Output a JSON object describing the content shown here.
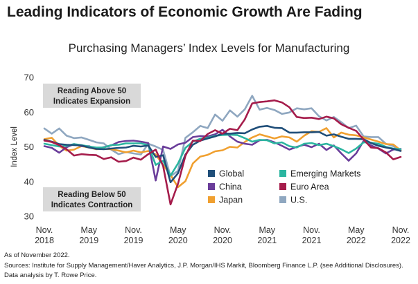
{
  "title": "Leading Indicators of Economic Growth Are Fading",
  "footnote": "As of November 2022.",
  "sources": "Sources: Institute for Supply Management/Haver Analytics, J.P. Morgan/IHS Markit, Bloomberg Finance L.P. (see Additional Disclosures). Data analysis by T. Rowe Price.",
  "chart_data": {
    "type": "line",
    "title": "Purchasing Managers’ Index Levels for Manufacturing",
    "xlabel": "",
    "ylabel": "Index Level",
    "ylim": [
      30,
      70
    ],
    "yticks": [
      30,
      40,
      50,
      60,
      70
    ],
    "grid": false,
    "legend_placement": "bottom-right",
    "x_tick_labels": [
      {
        "month": "Nov.",
        "year": "2018"
      },
      {
        "month": "May",
        "year": "2019"
      },
      {
        "month": "Nov.",
        "year": "2019"
      },
      {
        "month": "May",
        "year": "2020"
      },
      {
        "month": "Nov.",
        "year": "2020"
      },
      {
        "month": "May",
        "year": "2021"
      },
      {
        "month": "Nov.",
        "year": "2021"
      },
      {
        "month": "May",
        "year": "2022"
      },
      {
        "month": "Nov.",
        "year": "2022"
      }
    ],
    "annotations": {
      "upper_line1": "Reading Above 50",
      "upper_line2": "Indicates Expansion",
      "lower_line1": "Reading Below 50",
      "lower_line2": "Indicates Contraction"
    },
    "x": [
      "2018-11",
      "2018-12",
      "2019-01",
      "2019-02",
      "2019-03",
      "2019-04",
      "2019-05",
      "2019-06",
      "2019-07",
      "2019-08",
      "2019-09",
      "2019-10",
      "2019-11",
      "2019-12",
      "2020-01",
      "2020-02",
      "2020-03",
      "2020-04",
      "2020-05",
      "2020-06",
      "2020-07",
      "2020-08",
      "2020-09",
      "2020-10",
      "2020-11",
      "2020-12",
      "2021-01",
      "2021-02",
      "2021-03",
      "2021-04",
      "2021-05",
      "2021-06",
      "2021-07",
      "2021-08",
      "2021-09",
      "2021-10",
      "2021-11",
      "2021-12",
      "2022-01",
      "2022-02",
      "2022-03",
      "2022-04",
      "2022-05",
      "2022-06",
      "2022-07",
      "2022-08",
      "2022-09",
      "2022-10",
      "2022-11"
    ],
    "series": [
      {
        "name": "Global",
        "color": "#1f4e79",
        "values": [
          52.0,
          51.5,
          50.8,
          50.6,
          50.5,
          50.4,
          49.8,
          49.4,
          49.3,
          49.5,
          49.7,
          49.8,
          50.3,
          50.1,
          50.4,
          47.1,
          47.6,
          39.8,
          42.4,
          47.8,
          50.6,
          51.8,
          52.4,
          53.0,
          53.8,
          53.8,
          54.0,
          53.9,
          55.0,
          55.8,
          56.0,
          55.5,
          55.4,
          54.1,
          54.1,
          54.2,
          54.2,
          54.3,
          53.2,
          53.6,
          52.9,
          52.3,
          52.3,
          52.2,
          51.1,
          50.3,
          49.8,
          49.4,
          48.8
        ]
      },
      {
        "name": "Emerging Markets",
        "color": "#2bb5a0",
        "values": [
          50.9,
          50.5,
          50.1,
          50.3,
          50.8,
          50.5,
          50.1,
          49.8,
          49.8,
          50.5,
          50.6,
          51.0,
          51.0,
          51.0,
          50.5,
          44.8,
          46.0,
          41.7,
          45.2,
          49.7,
          51.5,
          52.3,
          52.6,
          53.2,
          53.4,
          53.5,
          53.4,
          52.5,
          51.5,
          52.0,
          51.9,
          51.0,
          51.3,
          50.2,
          49.8,
          50.9,
          51.1,
          50.5,
          50.9,
          50.2,
          49.3,
          48.2,
          49.5,
          51.3,
          51.2,
          50.9,
          50.0,
          49.5,
          49.3
        ]
      },
      {
        "name": "China",
        "color": "#6a3d9a",
        "values": [
          50.2,
          49.7,
          48.3,
          49.9,
          50.8,
          50.2,
          50.2,
          49.4,
          49.9,
          50.4,
          51.4,
          51.7,
          51.8,
          51.5,
          51.1,
          40.3,
          50.1,
          49.4,
          50.7,
          51.2,
          52.8,
          53.1,
          53.0,
          53.6,
          54.9,
          53.0,
          51.5,
          50.9,
          50.6,
          51.9,
          52.0,
          51.3,
          50.3,
          49.2,
          50.0,
          50.6,
          49.9,
          50.9,
          49.1,
          50.4,
          48.1,
          46.0,
          48.1,
          51.7,
          50.4,
          49.5,
          48.1,
          49.2,
          49.4
        ]
      },
      {
        "name": "Euro Area",
        "color": "#a51c4b",
        "values": [
          51.8,
          51.4,
          50.5,
          49.3,
          47.5,
          47.9,
          47.7,
          47.6,
          46.5,
          47.0,
          45.7,
          45.9,
          46.9,
          46.3,
          47.9,
          49.2,
          44.5,
          33.4,
          39.4,
          47.4,
          51.8,
          51.7,
          53.7,
          54.8,
          53.8,
          55.2,
          54.8,
          57.9,
          62.5,
          62.9,
          63.1,
          63.4,
          62.8,
          61.4,
          58.6,
          58.3,
          58.4,
          58.0,
          58.7,
          58.2,
          56.5,
          55.5,
          54.6,
          52.1,
          49.8,
          49.6,
          48.4,
          46.4,
          47.1
        ]
      },
      {
        "name": "Japan",
        "color": "#f0a030",
        "values": [
          52.2,
          52.6,
          50.3,
          48.9,
          49.2,
          50.2,
          49.8,
          49.3,
          49.4,
          49.3,
          48.9,
          48.4,
          48.9,
          48.4,
          48.8,
          47.8,
          44.8,
          41.9,
          38.4,
          40.1,
          45.2,
          47.2,
          47.7,
          48.7,
          49.0,
          50.0,
          49.8,
          51.4,
          52.7,
          53.6,
          53.0,
          52.4,
          53.0,
          52.7,
          51.5,
          53.2,
          54.5,
          54.3,
          55.4,
          52.7,
          54.1,
          53.5,
          53.3,
          52.7,
          52.1,
          51.5,
          50.8,
          50.7,
          49.0
        ]
      },
      {
        "name": "U.S.",
        "color": "#8fa7c0",
        "values": [
          55.3,
          53.8,
          55.3,
          53.2,
          52.5,
          52.7,
          52.0,
          51.3,
          51.0,
          49.2,
          47.9,
          48.5,
          48.1,
          47.8,
          50.9,
          50.1,
          49.1,
          41.5,
          43.1,
          52.6,
          54.2,
          56.0,
          55.4,
          59.3,
          57.5,
          60.5,
          58.7,
          60.8,
          64.7,
          60.7,
          61.2,
          60.6,
          59.5,
          59.9,
          61.1,
          60.8,
          61.1,
          58.8,
          57.6,
          58.6,
          57.1,
          55.4,
          56.1,
          53.0,
          52.8,
          52.8,
          50.9,
          50.2,
          49.0
        ]
      }
    ]
  }
}
